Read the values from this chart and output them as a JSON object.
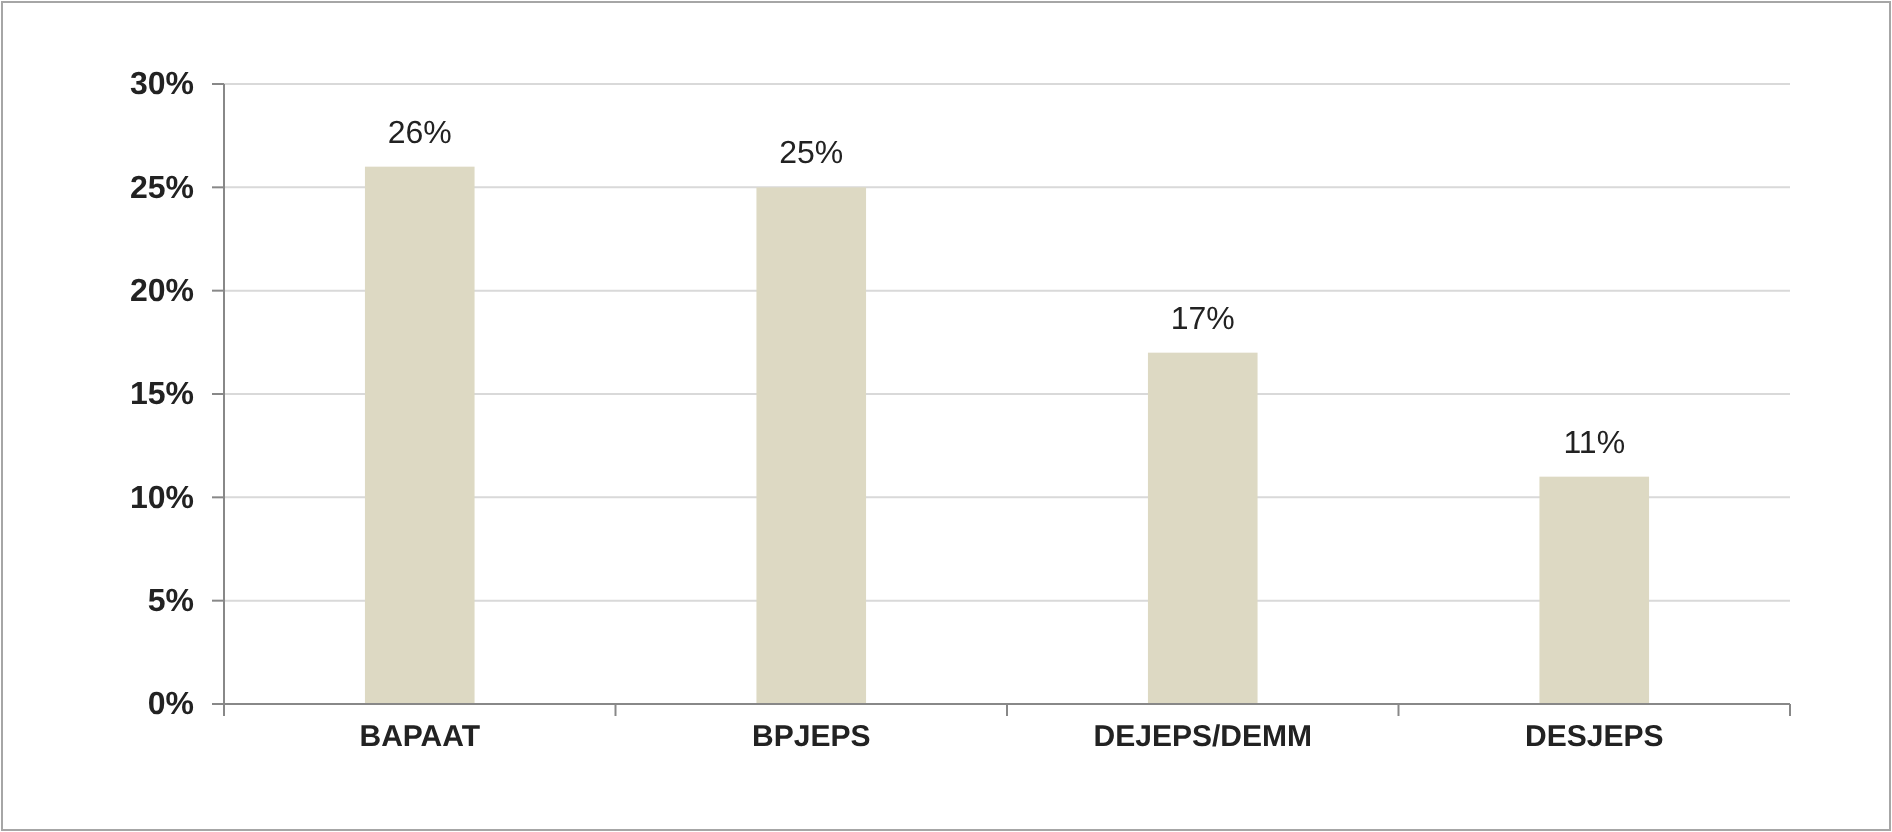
{
  "chart_data": {
    "type": "bar",
    "categories": [
      "BAPAAT",
      "BPJEPS",
      "DEJEPS/DEMM",
      "DESJEPS"
    ],
    "values": [
      26,
      25,
      17,
      11
    ],
    "color": "#ddd9c3",
    "ylim": [
      0,
      30
    ],
    "yticks": [
      {
        "value": 0,
        "label": "0%"
      },
      {
        "value": 5,
        "label": "5%"
      },
      {
        "value": 10,
        "label": "10%"
      },
      {
        "value": 15,
        "label": "15%"
      },
      {
        "value": 20,
        "label": "20%"
      },
      {
        "value": 25,
        "label": "25%"
      },
      {
        "value": 30,
        "label": "30%"
      }
    ],
    "value_labels": [
      "26%",
      "25%",
      "17%",
      "11%"
    ],
    "grid": "y"
  }
}
